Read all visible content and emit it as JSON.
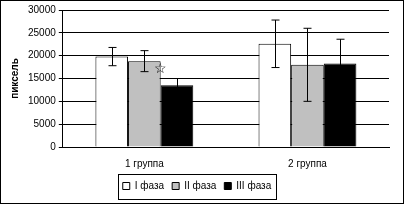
{
  "chart_data": {
    "type": "bar",
    "y_label": "пиксель",
    "categories": [
      "1 группа",
      "2 группа"
    ],
    "series": [
      {
        "name": "I фаза",
        "color": "#ffffff",
        "values": [
          19800,
          22600
        ],
        "errors": [
          2000,
          5200
        ]
      },
      {
        "name": "II фаза",
        "color": "#c0c0c0",
        "values": [
          18800,
          18000
        ],
        "errors": [
          2300,
          8000
        ]
      },
      {
        "name": "III фаза",
        "color": "#000000",
        "values": [
          13500,
          18300
        ],
        "errors": [
          1500,
          5300
        ]
      }
    ],
    "annotations": [
      {
        "text": "☆",
        "category": "1 группа",
        "series": "III фаза",
        "y": 17000
      }
    ],
    "ylim": [
      0,
      30000
    ],
    "yticks": [
      0,
      5000,
      10000,
      15000,
      20000,
      25000,
      30000
    ],
    "grid": true,
    "legend": "bottom"
  }
}
